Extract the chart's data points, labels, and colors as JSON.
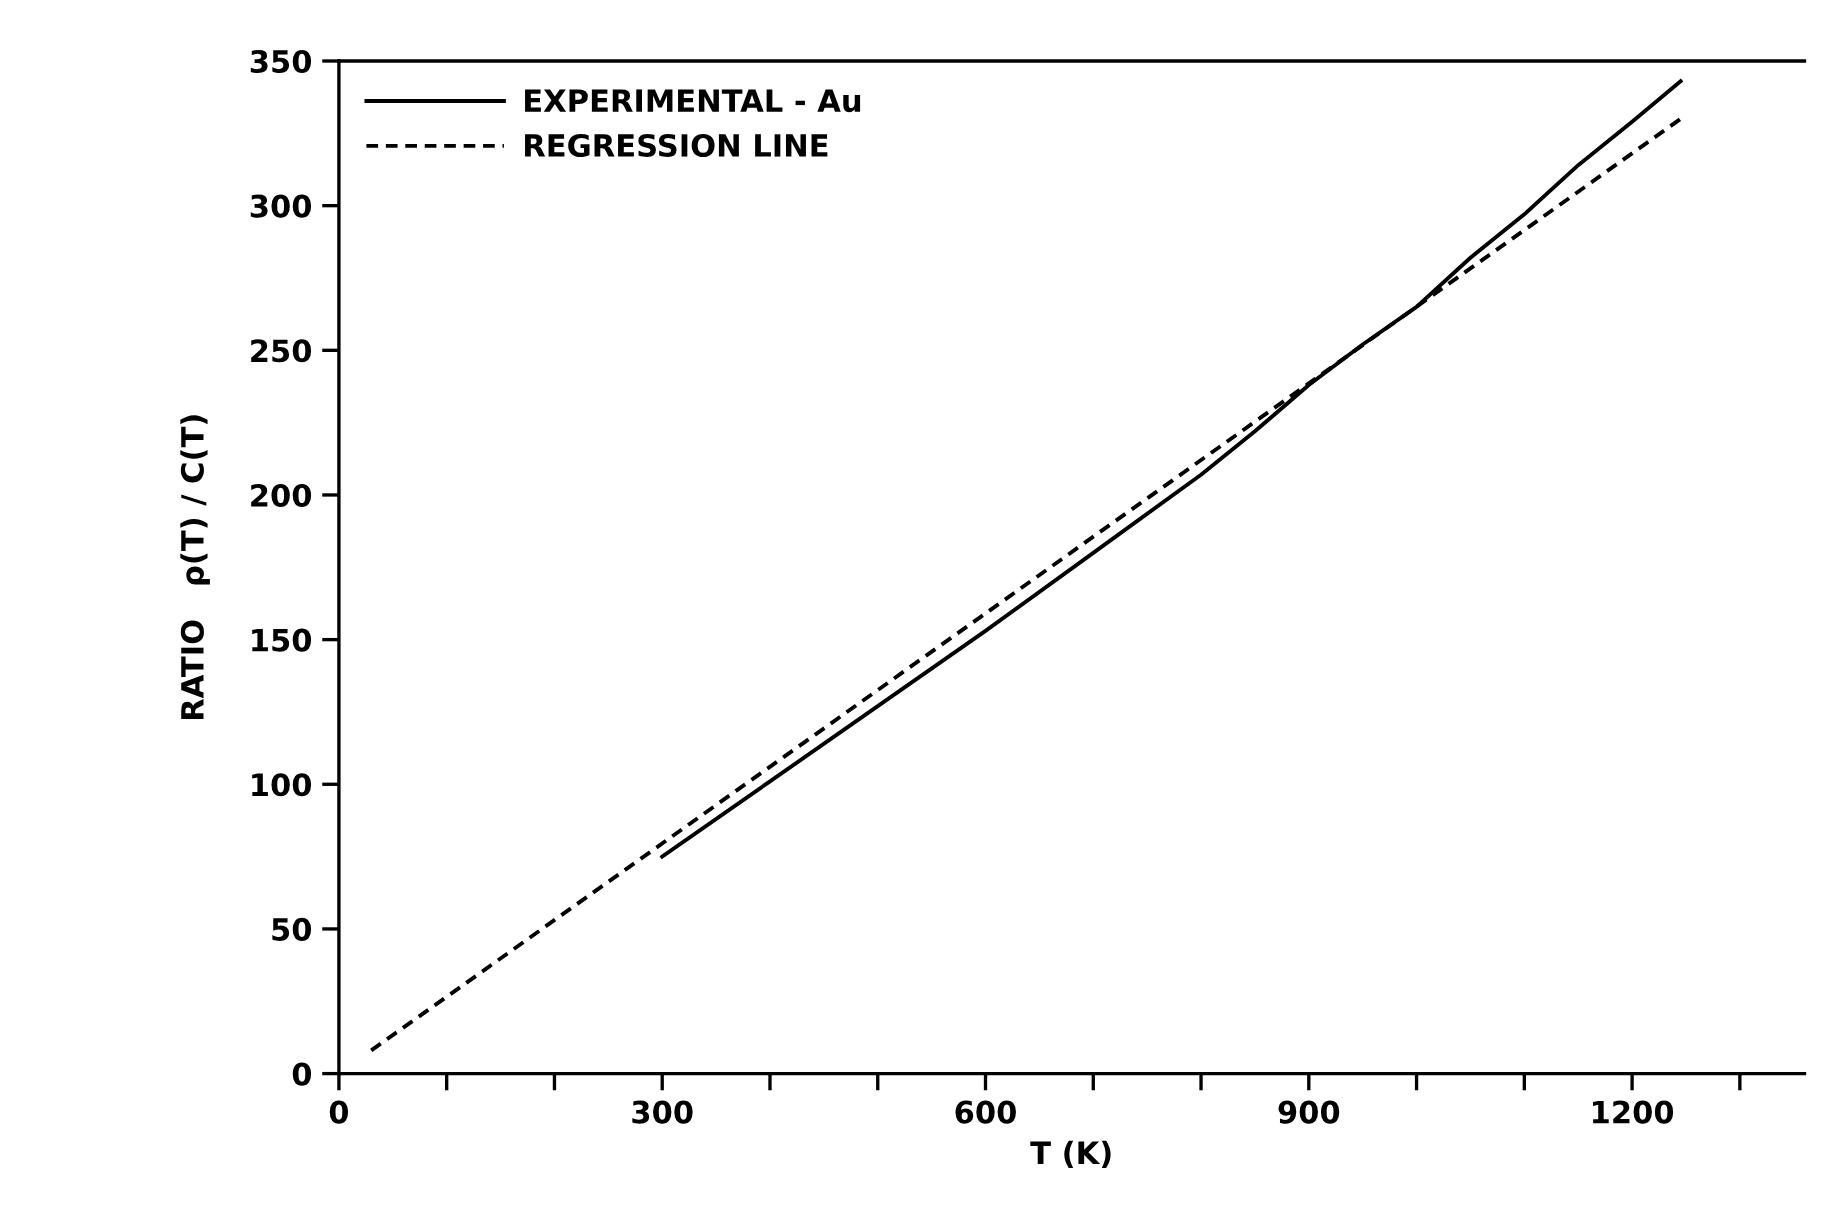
{
  "chart_data": {
    "type": "line",
    "xlabel": "T (K)",
    "ylabel": "RATIO   ρ(T) / C(T)",
    "xlim": [
      0,
      1360
    ],
    "ylim": [
      0,
      350
    ],
    "xticks": [
      0,
      {
        "value": 100,
        "label": null
      },
      {
        "value": 200,
        "label": null
      },
      300,
      {
        "value": 400,
        "label": null
      },
      {
        "value": 500,
        "label": null
      },
      600,
      {
        "value": 700,
        "label": null
      },
      {
        "value": 800,
        "label": null
      },
      900,
      {
        "value": 1000,
        "label": null
      },
      {
        "value": 1100,
        "label": null
      },
      1200,
      {
        "value": 1300,
        "label": null
      }
    ],
    "yticks": [
      0,
      50,
      100,
      150,
      200,
      250,
      300,
      350
    ],
    "grid": false,
    "legend": "top left",
    "series": [
      {
        "name": "EXPERIMENTAL - Au",
        "color": "#000000",
        "line_style": "solid",
        "x": [
          300,
          400,
          500,
          600,
          700,
          800,
          850,
          900,
          950,
          1000,
          1050,
          1100,
          1150,
          1200,
          1245
        ],
        "values": [
          75,
          101,
          127,
          153,
          180,
          207,
          222,
          238,
          252,
          265,
          282,
          297,
          314,
          329,
          343
        ]
      },
      {
        "name": "REGRESSION LINE",
        "color": "#000000",
        "line_style": "dashed",
        "x": [
          30,
          1245
        ],
        "values": [
          8,
          330
        ]
      }
    ]
  }
}
